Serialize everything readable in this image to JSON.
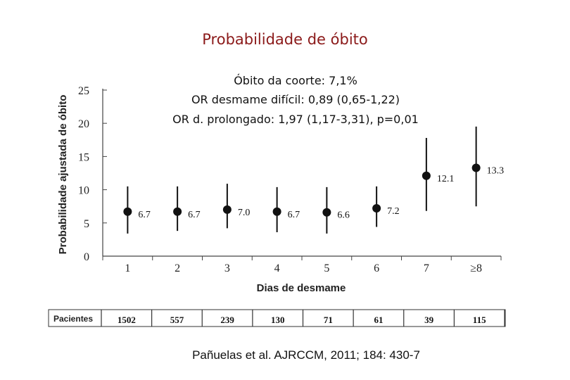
{
  "chart_data": {
    "type": "scatter",
    "title": "Probabilidade de óbito",
    "annotations": [
      "Óbito da coorte: 7,1%",
      "OR desmame difícil: 0,89 (0,65-1,22)",
      "OR d. prolongado: 1,97 (1,17-3,31), p=0,01"
    ],
    "xlabel": "Dias de desmame",
    "ylabel": "Probabilidade ajustada de óbito",
    "categories": [
      "1",
      "2",
      "3",
      "4",
      "5",
      "6",
      "7",
      "≥8"
    ],
    "ylim": [
      0,
      25
    ],
    "yticks": [
      "0",
      "5",
      "10",
      "15",
      "20",
      "25"
    ],
    "series": [
      {
        "values": [
          6.7,
          6.7,
          7.0,
          6.7,
          6.6,
          7.2,
          12.1,
          13.3
        ],
        "labels": [
          "6.7",
          "6.7",
          "7.0",
          "6.7",
          "6.6",
          "7.2",
          "12.1",
          "13.3"
        ],
        "ci_low": [
          3.4,
          3.8,
          4.2,
          3.6,
          3.4,
          4.4,
          6.8,
          7.5
        ],
        "ci_high": [
          10.5,
          10.5,
          10.9,
          10.4,
          10.4,
          10.5,
          17.8,
          19.5
        ]
      }
    ],
    "grid": false,
    "legend": "none",
    "marker_color": "#111111",
    "title_color": "#8b1a1a"
  },
  "patients": {
    "label": "Pacientes",
    "values": [
      "1502",
      "557",
      "239",
      "130",
      "71",
      "61",
      "39",
      "115"
    ]
  },
  "citation": "Pañuelas et al. AJRCCM, 2011; 184: 430-7"
}
